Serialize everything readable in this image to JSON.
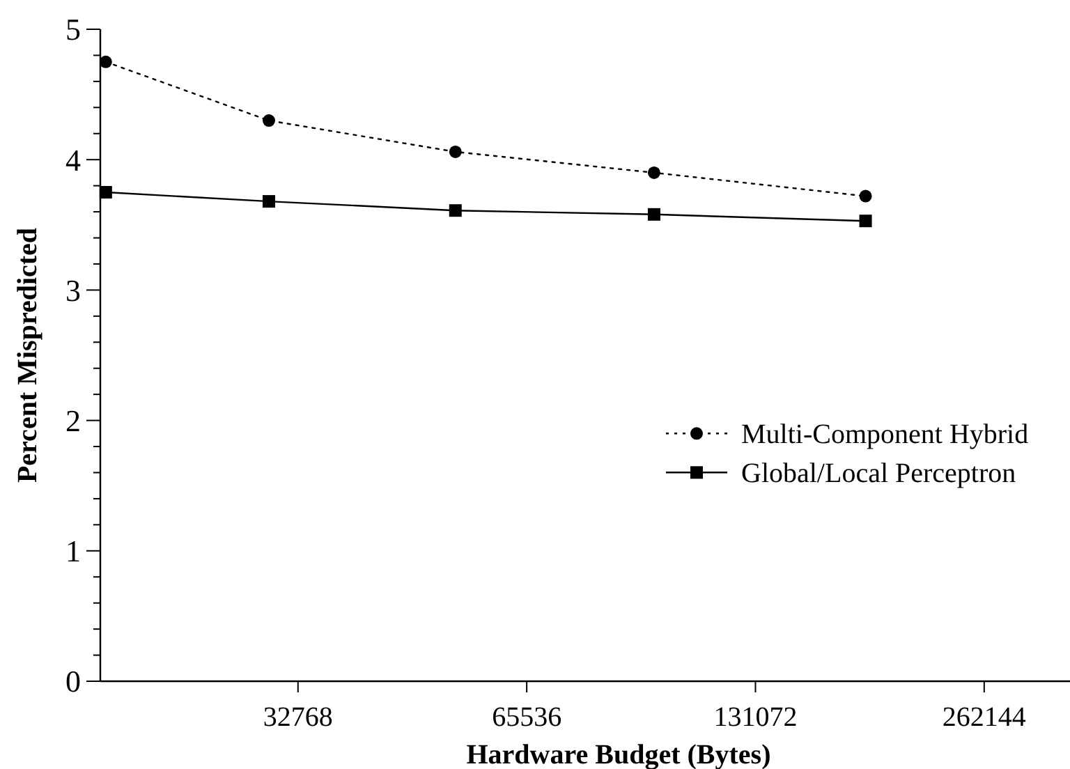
{
  "chart_data": {
    "type": "line",
    "xlabel": "Hardware Budget (Bytes)",
    "ylabel": "Percent Mispredicted",
    "log": "x",
    "xlim": [
      18000,
      340000
    ],
    "xticks": [
      32768,
      65536,
      131072,
      262144
    ],
    "ylim": [
      0,
      5
    ],
    "yticks": [
      0,
      {
        "value": 0.2,
        "label": null
      },
      {
        "value": 0.4,
        "label": null
      },
      {
        "value": 0.6,
        "label": null
      },
      {
        "value": 0.8,
        "label": null
      },
      1,
      {
        "value": 1.2,
        "label": null
      },
      {
        "value": 1.4,
        "label": null
      },
      {
        "value": 1.6,
        "label": null
      },
      {
        "value": 1.8,
        "label": null
      },
      2,
      {
        "value": 2.2,
        "label": null
      },
      {
        "value": 2.4,
        "label": null
      },
      {
        "value": 2.6,
        "label": null
      },
      {
        "value": 2.8,
        "label": null
      },
      3,
      {
        "value": 3.2,
        "label": null
      },
      {
        "value": 3.4,
        "label": null
      },
      {
        "value": 3.6,
        "label": null
      },
      {
        "value": 3.8,
        "label": null
      },
      4,
      {
        "value": 4.2,
        "label": null
      },
      {
        "value": 4.4,
        "label": null
      },
      {
        "value": 4.6,
        "label": null
      },
      {
        "value": 4.8,
        "label": null
      },
      5
    ],
    "grid": false,
    "legend": "right",
    "series": [
      {
        "name": "Multi-Component Hybrid",
        "color": "#000000",
        "marker": "circle",
        "line_style": "dotted",
        "x": [
          18300,
          30000,
          52800,
          96400,
          183000
        ],
        "values": [
          4.75,
          4.3,
          4.06,
          3.9,
          3.72
        ]
      },
      {
        "name": "Global/Local Perceptron",
        "color": "#000000",
        "marker": "square",
        "line_style": "solid",
        "x": [
          18300,
          30000,
          52800,
          96400,
          183000
        ],
        "values": [
          3.75,
          3.68,
          3.61,
          3.58,
          3.53
        ]
      }
    ]
  }
}
